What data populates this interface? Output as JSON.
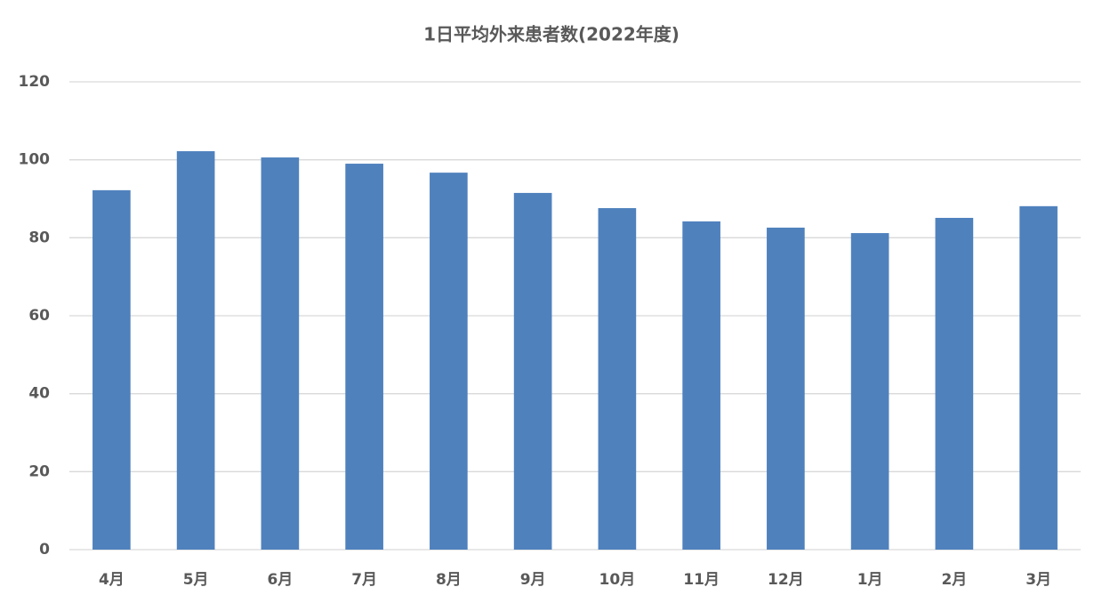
{
  "chart_data": {
    "type": "bar",
    "title": "1日平均外来患者数(2022年度)",
    "categories": [
      "4月",
      "5月",
      "6月",
      "7月",
      "8月",
      "9月",
      "10月",
      "11月",
      "12月",
      "1月",
      "2月",
      "3月"
    ],
    "values": [
      92.2,
      102.2,
      100.6,
      99,
      96.7,
      91.5,
      87.6,
      84.2,
      82.6,
      81.2,
      85.1,
      88.1
    ],
    "color": "#4f81bd",
    "ylim": [
      0,
      120
    ],
    "yticks": [
      0,
      20,
      40,
      60,
      80,
      100,
      120
    ],
    "grid": true
  }
}
